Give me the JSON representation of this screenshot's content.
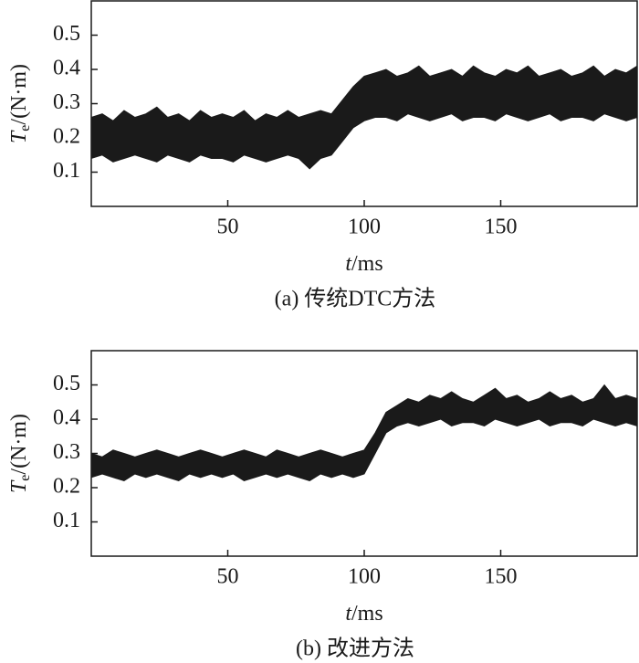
{
  "chart_data": [
    {
      "type": "band",
      "x": [
        0,
        4,
        8,
        12,
        16,
        20,
        24,
        28,
        32,
        36,
        40,
        44,
        48,
        52,
        56,
        60,
        64,
        68,
        72,
        76,
        80,
        84,
        88,
        92,
        96,
        100,
        104,
        108,
        112,
        116,
        120,
        124,
        128,
        132,
        136,
        140,
        144,
        148,
        152,
        156,
        160,
        164,
        168,
        172,
        176,
        180,
        184,
        188,
        192,
        196,
        200
      ],
      "series": [
        {
          "color": "#1a1a1a",
          "values": [
            0.14,
            0.15,
            0.13,
            0.14,
            0.15,
            0.14,
            0.13,
            0.15,
            0.14,
            0.13,
            0.15,
            0.14,
            0.14,
            0.13,
            0.15,
            0.14,
            0.13,
            0.14,
            0.15,
            0.14,
            0.11,
            0.14,
            0.15,
            0.19,
            0.23,
            0.25,
            0.26,
            0.26,
            0.25,
            0.27,
            0.26,
            0.25,
            0.26,
            0.27,
            0.25,
            0.26,
            0.26,
            0.25,
            0.27,
            0.26,
            0.25,
            0.26,
            0.27,
            0.25,
            0.26,
            0.26,
            0.25,
            0.27,
            0.26,
            0.25,
            0.26
          ]
        },
        {
          "color": "#1a1a1a",
          "values": [
            0.26,
            0.27,
            0.25,
            0.28,
            0.26,
            0.27,
            0.29,
            0.26,
            0.27,
            0.25,
            0.28,
            0.26,
            0.27,
            0.26,
            0.28,
            0.25,
            0.27,
            0.26,
            0.28,
            0.26,
            0.27,
            0.28,
            0.27,
            0.31,
            0.35,
            0.38,
            0.39,
            0.4,
            0.38,
            0.39,
            0.41,
            0.38,
            0.39,
            0.4,
            0.38,
            0.41,
            0.39,
            0.38,
            0.4,
            0.39,
            0.41,
            0.38,
            0.39,
            0.4,
            0.38,
            0.39,
            0.41,
            0.38,
            0.4,
            0.39,
            0.41
          ]
        }
      ],
      "xlim": [
        0,
        200
      ],
      "xticks": [
        50,
        100,
        150
      ],
      "ylim": [
        0,
        0.6
      ],
      "yticks": [
        0.1,
        0.2,
        0.3,
        0.4,
        0.5
      ],
      "xlabel": {
        "symbol": "t",
        "unit": "/ms"
      },
      "ylabel": {
        "symbol": "T",
        "subscript": "e",
        "unit": "/(N·m)"
      },
      "caption": "(a) 传统DTC方法"
    },
    {
      "type": "band",
      "x": [
        0,
        4,
        8,
        12,
        16,
        20,
        24,
        28,
        32,
        36,
        40,
        44,
        48,
        52,
        56,
        60,
        64,
        68,
        72,
        76,
        80,
        84,
        88,
        92,
        96,
        100,
        104,
        108,
        112,
        116,
        120,
        124,
        128,
        132,
        136,
        140,
        144,
        148,
        152,
        156,
        160,
        164,
        168,
        172,
        176,
        180,
        184,
        188,
        192,
        196,
        200
      ],
      "series": [
        {
          "color": "#1a1a1a",
          "values": [
            0.23,
            0.24,
            0.23,
            0.22,
            0.24,
            0.23,
            0.24,
            0.23,
            0.22,
            0.24,
            0.23,
            0.24,
            0.23,
            0.24,
            0.22,
            0.23,
            0.24,
            0.23,
            0.24,
            0.23,
            0.22,
            0.24,
            0.23,
            0.24,
            0.23,
            0.24,
            0.3,
            0.36,
            0.38,
            0.39,
            0.38,
            0.39,
            0.4,
            0.38,
            0.39,
            0.39,
            0.38,
            0.4,
            0.39,
            0.38,
            0.39,
            0.4,
            0.38,
            0.39,
            0.39,
            0.38,
            0.4,
            0.39,
            0.38,
            0.39,
            0.38
          ]
        },
        {
          "color": "#1a1a1a",
          "values": [
            0.3,
            0.29,
            0.31,
            0.3,
            0.29,
            0.3,
            0.31,
            0.3,
            0.29,
            0.3,
            0.31,
            0.3,
            0.29,
            0.3,
            0.31,
            0.3,
            0.29,
            0.31,
            0.3,
            0.29,
            0.3,
            0.31,
            0.3,
            0.29,
            0.3,
            0.31,
            0.36,
            0.42,
            0.44,
            0.46,
            0.45,
            0.47,
            0.46,
            0.48,
            0.46,
            0.45,
            0.47,
            0.49,
            0.46,
            0.47,
            0.45,
            0.46,
            0.48,
            0.46,
            0.47,
            0.45,
            0.46,
            0.5,
            0.46,
            0.47,
            0.46
          ]
        }
      ],
      "xlim": [
        0,
        200
      ],
      "xticks": [
        50,
        100,
        150
      ],
      "ylim": [
        0,
        0.6
      ],
      "yticks": [
        0.1,
        0.2,
        0.3,
        0.4,
        0.5
      ],
      "xlabel": {
        "symbol": "t",
        "unit": "/ms"
      },
      "ylabel": {
        "symbol": "T",
        "subscript": "e",
        "unit": "/(N·m)"
      },
      "caption": "(b) 改进方法"
    }
  ]
}
